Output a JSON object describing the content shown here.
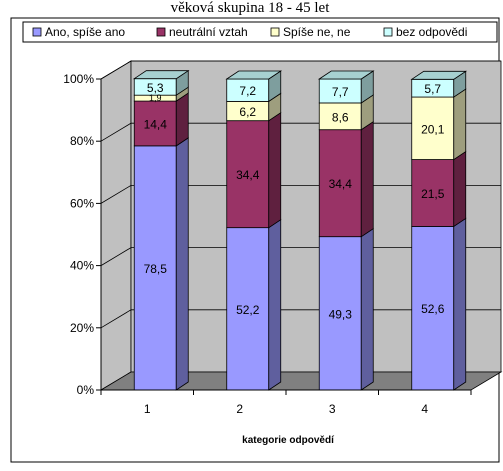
{
  "chart_data": {
    "type": "bar",
    "stacked": true,
    "percent": true,
    "three_d": true,
    "title": "věková skupina 18 - 45 let",
    "xlabel": "kategorie odpovědí",
    "ylabel": "",
    "categories": [
      "1",
      "2",
      "3",
      "4"
    ],
    "y_ticks": [
      "0%",
      "20%",
      "40%",
      "60%",
      "80%",
      "100%"
    ],
    "ylim": [
      0,
      100
    ],
    "grid": true,
    "legend_position": "top",
    "series": [
      {
        "name": "Ano, spíše ano",
        "values": [
          78.5,
          52.2,
          49.3,
          52.6
        ],
        "labels": [
          "78,5",
          "52,2",
          "49,3",
          "52,6"
        ],
        "color": "#9999ff"
      },
      {
        "name": "neutrální vztah",
        "values": [
          14.4,
          34.4,
          34.4,
          21.5
        ],
        "labels": [
          "14,4",
          "34,4",
          "34,4",
          "21,5"
        ],
        "color": "#993366"
      },
      {
        "name": "Spíše ne, ne",
        "values": [
          1.9,
          6.2,
          8.6,
          20.1
        ],
        "labels": [
          "1,9",
          "6,2",
          "8,6",
          "20,1"
        ],
        "color": "#ffffcc"
      },
      {
        "name": "bez odpovědi",
        "values": [
          5.3,
          7.2,
          7.7,
          5.7
        ],
        "labels": [
          "5,3",
          "7,2",
          "7,7",
          "5,7"
        ],
        "color": "#ccffff"
      }
    ]
  }
}
